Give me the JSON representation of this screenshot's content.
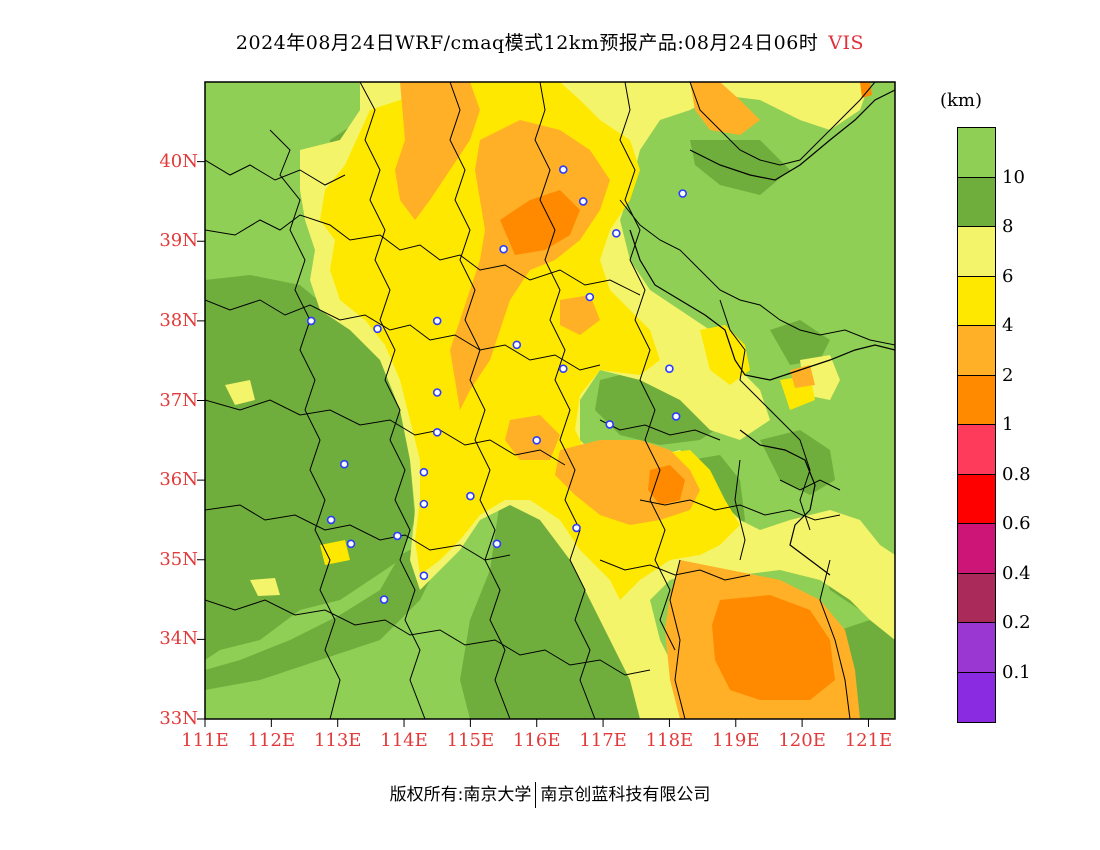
{
  "title": {
    "text": "2024年08月24日WRF/cmaq模式12km预报产品:08月24日06时",
    "variable": "VIS"
  },
  "axes": {
    "lat_labels": [
      "40N",
      "39N",
      "38N",
      "37N",
      "36N",
      "35N",
      "34N",
      "33N"
    ],
    "lon_labels": [
      "111E",
      "112E",
      "113E",
      "114E",
      "115E",
      "116E",
      "117E",
      "118E",
      "119E",
      "120E",
      "121E"
    ],
    "lat_range": [
      33,
      41
    ],
    "lon_range": [
      111,
      121.4
    ]
  },
  "colorbar": {
    "unit": "(km)",
    "colors": [
      "#8fcf55",
      "#6fae3c",
      "#f4f46a",
      "#ffe800",
      "#ffb027",
      "#ff8a00",
      "#ff3b5c",
      "#ff0000",
      "#cc1577",
      "#aa2a5a",
      "#9a36d2",
      "#8a2be2"
    ],
    "ticks": [
      "10",
      "8",
      "6",
      "4",
      "2",
      "1",
      "0.8",
      "0.6",
      "0.4",
      "0.2",
      "0.1"
    ]
  },
  "regions": {
    "palette": {
      "ge10": "#8fcf55",
      "r8_10": "#6fae3c",
      "r6_8": "#f4f46a",
      "r4_6": "#ffe800",
      "r2_4": "#ffb027",
      "r1_2": "#ff8a00"
    }
  },
  "cities": [
    [
      116.4,
      39.9
    ],
    [
      117.2,
      39.1
    ],
    [
      116.7,
      39.5
    ],
    [
      118.2,
      39.6
    ],
    [
      115.5,
      38.9
    ],
    [
      116.8,
      38.3
    ],
    [
      114.5,
      38.0
    ],
    [
      113.6,
      37.9
    ],
    [
      112.6,
      38.0
    ],
    [
      115.7,
      37.7
    ],
    [
      116.4,
      37.4
    ],
    [
      114.5,
      37.1
    ],
    [
      114.5,
      36.6
    ],
    [
      114.3,
      36.1
    ],
    [
      113.1,
      36.2
    ],
    [
      112.9,
      35.5
    ],
    [
      113.2,
      35.2
    ],
    [
      113.9,
      35.3
    ],
    [
      114.3,
      35.7
    ],
    [
      115.0,
      35.8
    ],
    [
      115.4,
      35.2
    ],
    [
      114.3,
      34.8
    ],
    [
      113.7,
      34.5
    ],
    [
      116.6,
      35.4
    ],
    [
      116.0,
      36.5
    ],
    [
      117.1,
      36.7
    ],
    [
      118.1,
      36.8
    ],
    [
      118.0,
      37.4
    ]
  ],
  "footer": {
    "left": "版权所有:南京大学",
    "right": "南京创蓝科技有限公司"
  }
}
